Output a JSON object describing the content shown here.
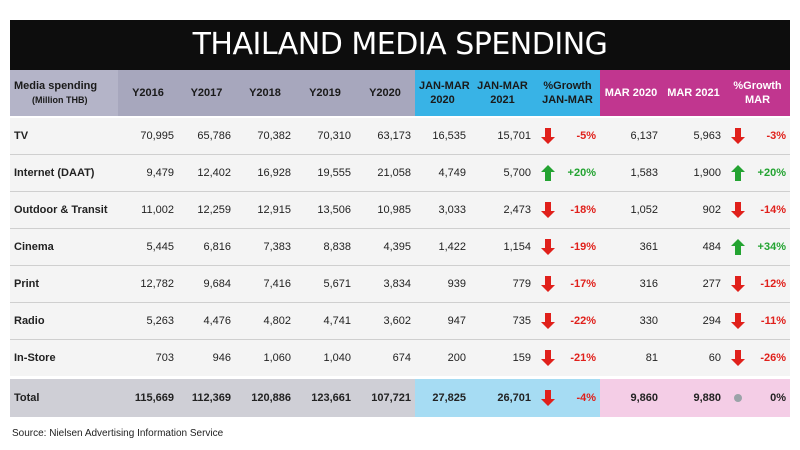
{
  "title": "THAILAND MEDIA SPENDING",
  "table": {
    "headers": [
      [
        "Media spending",
        "(Million THB)"
      ],
      [
        "Y2016"
      ],
      [
        "Y2017"
      ],
      [
        "Y2018"
      ],
      [
        "Y2019"
      ],
      [
        "Y2020"
      ],
      [
        "JAN-MAR",
        "2020"
      ],
      [
        "JAN-MAR",
        "2021"
      ],
      [
        "%Growth",
        "JAN-MAR"
      ],
      [
        "MAR 2020"
      ],
      [
        "MAR 2021"
      ],
      [
        "%Growth",
        "MAR"
      ]
    ],
    "rows": [
      [
        "TV",
        "70,995",
        "65,786",
        "70,382",
        "70,310",
        "63,173",
        "16,535",
        "15,701",
        "-5%",
        "6,137",
        "5,963",
        "-3%"
      ],
      [
        "Internet (DAAT)",
        "9,479",
        "12,402",
        "16,928",
        "19,555",
        "21,058",
        "4,749",
        "5,700",
        "+20%",
        "1,583",
        "1,900",
        "+20%"
      ],
      [
        "Outdoor & Transit",
        "11,002",
        "12,259",
        "12,915",
        "13,506",
        "10,985",
        "3,033",
        "2,473",
        "-18%",
        "1,052",
        "902",
        "-14%"
      ],
      [
        "Cinema",
        "5,445",
        "6,816",
        "7,383",
        "8,838",
        "4,395",
        "1,422",
        "1,154",
        "-19%",
        "361",
        "484",
        "+34%"
      ],
      [
        "Print",
        "12,782",
        "9,684",
        "7,416",
        "5,671",
        "3,834",
        "939",
        "779",
        "-17%",
        "316",
        "277",
        "-12%"
      ],
      [
        "Radio",
        "5,263",
        "4,476",
        "4,802",
        "4,741",
        "3,602",
        "947",
        "735",
        "-22%",
        "330",
        "294",
        "-11%"
      ],
      [
        "In-Store",
        "703",
        "946",
        "1,060",
        "1,040",
        "674",
        "200",
        "159",
        "-21%",
        "81",
        "60",
        "-26%"
      ]
    ],
    "total": [
      "Total",
      "115,669",
      "112,369",
      "120,886",
      "123,661",
      "107,721",
      "27,825",
      "26,701",
      "-4%",
      "9,860",
      "9,880",
      "0%"
    ]
  },
  "source": "Source: Nielsen Advertising Information Service"
}
